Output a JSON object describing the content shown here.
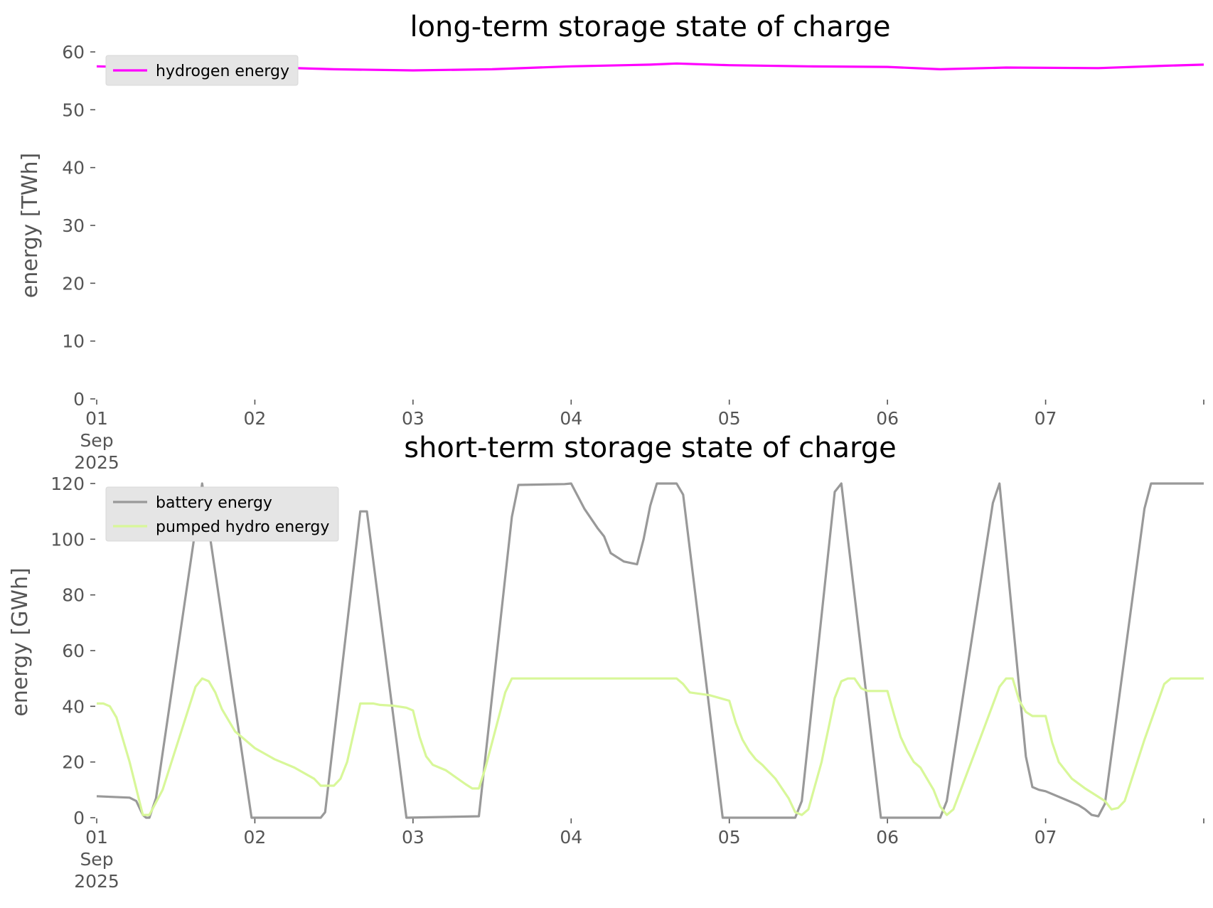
{
  "chart_data": [
    {
      "type": "line",
      "title": "long-term storage state of charge",
      "xlabel": "",
      "ylabel": "energy [TWh]",
      "x_tick_labels": [
        [
          "01",
          "Sep",
          "2025"
        ],
        [
          "02"
        ],
        [
          "03"
        ],
        [
          "04"
        ],
        [
          "05"
        ],
        [
          "06"
        ],
        [
          "07"
        ]
      ],
      "xlim": [
        "2025-09-01 00:00",
        "2025-09-08 00:00"
      ],
      "ylim": [
        0,
        60
      ],
      "y_ticks": [
        0,
        10,
        20,
        30,
        40,
        50,
        60
      ],
      "grid": false,
      "legend_position": "upper-left",
      "series": [
        {
          "name": "hydrogen energy",
          "color": "#ff00ff",
          "points": [
            [
              "2025-09-01 00:00",
              57.5
            ],
            [
              "2025-09-01 12:00",
              57.2
            ],
            [
              "2025-09-02 00:00",
              57.4
            ],
            [
              "2025-09-02 12:00",
              57.0
            ],
            [
              "2025-09-03 00:00",
              56.8
            ],
            [
              "2025-09-03 12:00",
              57.0
            ],
            [
              "2025-09-04 00:00",
              57.5
            ],
            [
              "2025-09-04 12:00",
              57.8
            ],
            [
              "2025-09-04 16:00",
              58.0
            ],
            [
              "2025-09-05 00:00",
              57.7
            ],
            [
              "2025-09-05 12:00",
              57.5
            ],
            [
              "2025-09-06 00:00",
              57.4
            ],
            [
              "2025-09-06 08:00",
              57.0
            ],
            [
              "2025-09-06 18:00",
              57.3
            ],
            [
              "2025-09-07 08:00",
              57.2
            ],
            [
              "2025-09-07 18:00",
              57.6
            ],
            [
              "2025-09-08 00:00",
              57.8
            ]
          ]
        }
      ]
    },
    {
      "type": "line",
      "title": "short-term storage state of charge",
      "xlabel": "",
      "ylabel": "energy [GWh]",
      "x_tick_labels": [
        [
          "01",
          "Sep",
          "2025"
        ],
        [
          "02"
        ],
        [
          "03"
        ],
        [
          "04"
        ],
        [
          "05"
        ],
        [
          "06"
        ],
        [
          "07"
        ]
      ],
      "xlim": [
        "2025-09-01 00:00",
        "2025-09-08 00:00"
      ],
      "ylim": [
        0,
        120
      ],
      "y_ticks": [
        0,
        20,
        40,
        60,
        80,
        100,
        120
      ],
      "grid": false,
      "legend_position": "upper-left",
      "series": [
        {
          "name": "battery energy",
          "color": "#999999",
          "points": [
            [
              "2025-09-01 00:00",
              7.7
            ],
            [
              "2025-09-01 05:00",
              7.2
            ],
            [
              "2025-09-01 06:00",
              6.0
            ],
            [
              "2025-09-01 07:00",
              1.0
            ],
            [
              "2025-09-01 07:30",
              0
            ],
            [
              "2025-09-01 08:00",
              0
            ],
            [
              "2025-09-01 09:00",
              7.0
            ],
            [
              "2025-09-01 16:00",
              120.0
            ],
            [
              "2025-09-01 23:30",
              0
            ],
            [
              "2025-09-02 10:00",
              0
            ],
            [
              "2025-09-02 10:40",
              2.0
            ],
            [
              "2025-09-02 16:00",
              110.0
            ],
            [
              "2025-09-02 17:00",
              110.0
            ],
            [
              "2025-09-02 23:00",
              0
            ],
            [
              "2025-09-03 10:00",
              0.5
            ],
            [
              "2025-09-03 15:00",
              108.0
            ],
            [
              "2025-09-03 16:00",
              119.5
            ],
            [
              "2025-09-03 23:00",
              119.8
            ],
            [
              "2025-09-04 00:00",
              120.0
            ],
            [
              "2025-09-04 02:00",
              111.0
            ],
            [
              "2025-09-04 04:00",
              104.0
            ],
            [
              "2025-09-04 05:00",
              101.0
            ],
            [
              "2025-09-04 06:00",
              95.0
            ],
            [
              "2025-09-04 08:00",
              92.0
            ],
            [
              "2025-09-04 10:00",
              91.0
            ],
            [
              "2025-09-04 11:00",
              100.0
            ],
            [
              "2025-09-04 12:00",
              112.0
            ],
            [
              "2025-09-04 13:00",
              120.0
            ],
            [
              "2025-09-04 16:00",
              120.0
            ],
            [
              "2025-09-04 17:00",
              116.0
            ],
            [
              "2025-09-04 23:00",
              0
            ],
            [
              "2025-09-05 10:00",
              0
            ],
            [
              "2025-09-05 11:00",
              6.0
            ],
            [
              "2025-09-05 16:00",
              117.0
            ],
            [
              "2025-09-05 17:00",
              120.0
            ],
            [
              "2025-09-05 23:00",
              0
            ],
            [
              "2025-09-06 08:00",
              0
            ],
            [
              "2025-09-06 09:00",
              6.0
            ],
            [
              "2025-09-06 16:00",
              113.0
            ],
            [
              "2025-09-06 17:00",
              120.0
            ],
            [
              "2025-09-06 21:00",
              22.0
            ],
            [
              "2025-09-06 22:00",
              11.0
            ],
            [
              "2025-09-06 23:00",
              10.0
            ],
            [
              "2025-09-07 00:00",
              9.5
            ],
            [
              "2025-09-07 03:00",
              6.5
            ],
            [
              "2025-09-07 05:00",
              4.5
            ],
            [
              "2025-09-07 06:00",
              3.0
            ],
            [
              "2025-09-07 07:00",
              1.0
            ],
            [
              "2025-09-07 08:00",
              0.5
            ],
            [
              "2025-09-07 09:00",
              5.0
            ],
            [
              "2025-09-07 15:00",
              111.0
            ],
            [
              "2025-09-07 16:00",
              120.0
            ],
            [
              "2025-09-08 00:00",
              120.0
            ]
          ]
        },
        {
          "name": "pumped hydro energy",
          "color": "#d8f799",
          "points": [
            [
              "2025-09-01 00:00",
              41.0
            ],
            [
              "2025-09-01 01:00",
              41.0
            ],
            [
              "2025-09-01 02:00",
              40.0
            ],
            [
              "2025-09-01 03:00",
              36.0
            ],
            [
              "2025-09-01 05:00",
              20.0
            ],
            [
              "2025-09-01 07:00",
              1.0
            ],
            [
              "2025-09-01 08:00",
              1.0
            ],
            [
              "2025-09-01 10:00",
              10.0
            ],
            [
              "2025-09-01 15:00",
              47.0
            ],
            [
              "2025-09-01 16:00",
              50.0
            ],
            [
              "2025-09-01 17:00",
              49.0
            ],
            [
              "2025-09-01 18:00",
              45.0
            ],
            [
              "2025-09-01 19:00",
              39.0
            ],
            [
              "2025-09-01 21:00",
              31.0
            ],
            [
              "2025-09-02 00:00",
              25.0
            ],
            [
              "2025-09-02 03:00",
              21.0
            ],
            [
              "2025-09-02 06:00",
              18.0
            ],
            [
              "2025-09-02 09:00",
              14.0
            ],
            [
              "2025-09-02 10:00",
              11.5
            ],
            [
              "2025-09-02 12:00",
              11.5
            ],
            [
              "2025-09-02 13:00",
              14.0
            ],
            [
              "2025-09-02 14:00",
              20.0
            ],
            [
              "2025-09-02 16:00",
              41.0
            ],
            [
              "2025-09-02 18:00",
              41.0
            ],
            [
              "2025-09-02 19:00",
              40.5
            ],
            [
              "2025-09-02 21:00",
              40.2
            ],
            [
              "2025-09-02 23:00",
              39.5
            ],
            [
              "2025-09-03 00:00",
              38.5
            ],
            [
              "2025-09-03 01:00",
              29.0
            ],
            [
              "2025-09-03 02:00",
              22.0
            ],
            [
              "2025-09-03 03:00",
              19.0
            ],
            [
              "2025-09-03 05:00",
              17.0
            ],
            [
              "2025-09-03 08:00",
              12.0
            ],
            [
              "2025-09-03 09:00",
              10.5
            ],
            [
              "2025-09-03 10:00",
              10.5
            ],
            [
              "2025-09-03 11:00",
              18.0
            ],
            [
              "2025-09-03 14:00",
              45.0
            ],
            [
              "2025-09-03 15:00",
              50.0
            ],
            [
              "2025-09-04 16:00",
              50.0
            ],
            [
              "2025-09-04 17:00",
              48.0
            ],
            [
              "2025-09-04 18:00",
              45.0
            ],
            [
              "2025-09-04 21:00",
              44.0
            ],
            [
              "2025-09-05 00:00",
              42.0
            ],
            [
              "2025-09-05 01:00",
              34.0
            ],
            [
              "2025-09-05 02:00",
              28.0
            ],
            [
              "2025-09-05 03:00",
              24.0
            ],
            [
              "2025-09-05 04:00",
              21.0
            ],
            [
              "2025-09-05 05:00",
              19.0
            ],
            [
              "2025-09-05 07:00",
              14.0
            ],
            [
              "2025-09-05 09:00",
              7.0
            ],
            [
              "2025-09-05 10:00",
              2.0
            ],
            [
              "2025-09-05 11:00",
              1.0
            ],
            [
              "2025-09-05 12:00",
              3.0
            ],
            [
              "2025-09-05 14:00",
              20.0
            ],
            [
              "2025-09-05 16:00",
              43.0
            ],
            [
              "2025-09-05 17:00",
              49.0
            ],
            [
              "2025-09-05 18:00",
              50.0
            ],
            [
              "2025-09-05 19:00",
              50.0
            ],
            [
              "2025-09-05 20:00",
              46.5
            ],
            [
              "2025-09-05 21:00",
              45.5
            ],
            [
              "2025-09-06 00:00",
              45.5
            ],
            [
              "2025-09-06 01:00",
              37.0
            ],
            [
              "2025-09-06 02:00",
              29.0
            ],
            [
              "2025-09-06 03:00",
              24.0
            ],
            [
              "2025-09-06 04:00",
              20.0
            ],
            [
              "2025-09-06 05:00",
              18.0
            ],
            [
              "2025-09-06 07:00",
              10.0
            ],
            [
              "2025-09-06 08:00",
              4.0
            ],
            [
              "2025-09-06 09:00",
              1.0
            ],
            [
              "2025-09-06 10:00",
              3.0
            ],
            [
              "2025-09-06 14:00",
              28.0
            ],
            [
              "2025-09-06 17:00",
              47.0
            ],
            [
              "2025-09-06 18:00",
              50.0
            ],
            [
              "2025-09-06 19:00",
              50.0
            ],
            [
              "2025-09-06 20:00",
              42.0
            ],
            [
              "2025-09-06 21:00",
              38.0
            ],
            [
              "2025-09-06 22:00",
              36.5
            ],
            [
              "2025-09-07 00:00",
              36.5
            ],
            [
              "2025-09-07 01:00",
              27.0
            ],
            [
              "2025-09-07 02:00",
              20.0
            ],
            [
              "2025-09-07 04:00",
              14.0
            ],
            [
              "2025-09-07 06:00",
              10.5
            ],
            [
              "2025-09-07 08:00",
              7.5
            ],
            [
              "2025-09-07 09:00",
              6.0
            ],
            [
              "2025-09-07 10:00",
              3.0
            ],
            [
              "2025-09-07 11:00",
              3.5
            ],
            [
              "2025-09-07 12:00",
              6.0
            ],
            [
              "2025-09-07 15:00",
              28.0
            ],
            [
              "2025-09-07 18:00",
              48.0
            ],
            [
              "2025-09-07 19:00",
              50.0
            ],
            [
              "2025-09-08 00:00",
              50.0
            ]
          ]
        }
      ]
    }
  ]
}
